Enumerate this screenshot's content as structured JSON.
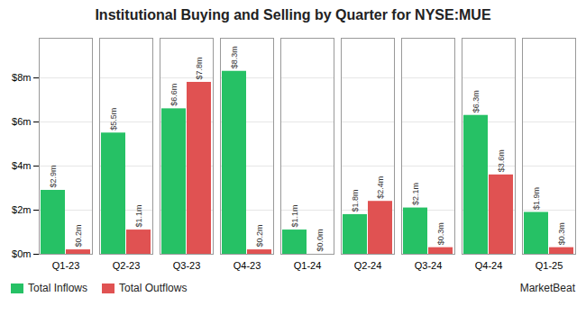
{
  "chart_data": {
    "type": "bar",
    "title": "Institutional Buying and Selling by Quarter for NYSE:MUE",
    "categories": [
      "Q1-23",
      "Q2-23",
      "Q3-23",
      "Q4-23",
      "Q1-24",
      "Q2-24",
      "Q3-24",
      "Q4-24",
      "Q1-25"
    ],
    "series": [
      {
        "name": "Total Inflows",
        "color": "#26c165",
        "values": [
          2.9,
          5.5,
          6.6,
          8.3,
          1.1,
          1.8,
          2.1,
          6.3,
          1.9
        ],
        "value_labels": [
          "$2.9m",
          "$5.5m",
          "$6.6m",
          "$8.3m",
          "$1.1m",
          "$1.8m",
          "$2.1m",
          "$6.3m",
          "$1.9m"
        ]
      },
      {
        "name": "Total Outflows",
        "color": "#e05252",
        "values": [
          0.2,
          1.1,
          7.8,
          0.2,
          0.0,
          2.4,
          0.3,
          3.6,
          0.3
        ],
        "value_labels": [
          "$0.2m",
          "$1.1m",
          "$7.8m",
          "$0.2m",
          "$0.0m",
          "$2.4m",
          "$0.3m",
          "$3.6m",
          "$0.3m"
        ]
      }
    ],
    "ylim": [
      0,
      9.8
    ],
    "yticks": [
      {
        "value": 0,
        "label": "$0m"
      },
      {
        "value": 2,
        "label": "$2m"
      },
      {
        "value": 4,
        "label": "$4m"
      },
      {
        "value": 6,
        "label": "$6m"
      },
      {
        "value": 8,
        "label": "$8m"
      }
    ],
    "grid": true,
    "legend": "lower left",
    "data_labels": true,
    "annotations": [
      "MarketBeat"
    ]
  }
}
